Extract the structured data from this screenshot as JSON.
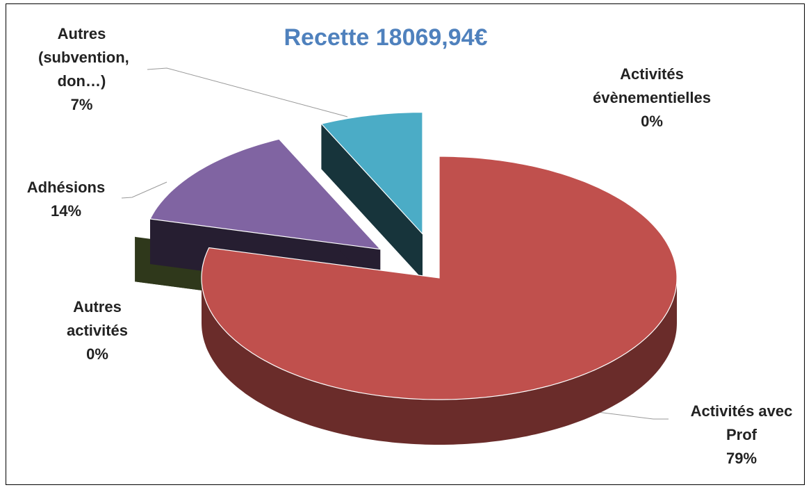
{
  "chart_data": {
    "type": "pie",
    "title": "Recette 18069,94€",
    "categories": [
      "Activités évènementielles",
      "Activités avec Prof",
      "Autres activités",
      "Adhésions",
      "Autres (subvention, don…)"
    ],
    "values": [
      0,
      79,
      0,
      14,
      7
    ],
    "value_labels": [
      "0%",
      "79%",
      "0%",
      "14%",
      "7%"
    ],
    "colors": [
      "#f79646",
      "#c0504d",
      "#9bbb59",
      "#8064a2",
      "#4bacc6"
    ]
  }
}
